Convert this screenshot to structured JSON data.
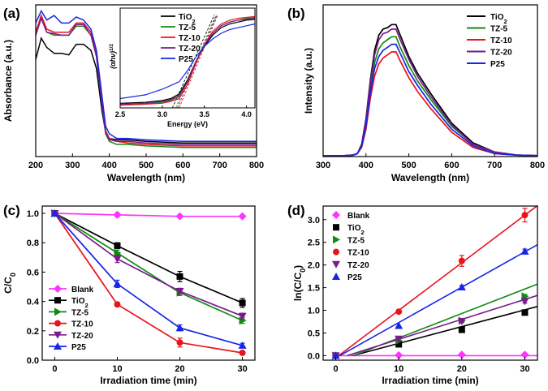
{
  "colors": {
    "TiO2": "#000000",
    "TZ-5": "#138a13",
    "TZ-10": "#e8141c",
    "TZ-20": "#7a1a8c",
    "P25": "#1626e6",
    "Blank": "#ff33ff"
  },
  "chart_data": [
    {
      "panel": "(a)",
      "type": "line",
      "xlabel": "Wavelength (nm)",
      "ylabel": "Absorbance (a.u.)",
      "xlim": [
        200,
        800
      ],
      "xticks": [
        200,
        300,
        400,
        500,
        600,
        700,
        800
      ],
      "yticks": [],
      "legend": "inset top-left",
      "series": [
        {
          "name": "TiO2",
          "x": [
            200,
            215,
            230,
            250,
            270,
            290,
            310,
            330,
            350,
            365,
            380,
            390,
            400,
            420,
            450,
            500,
            600,
            700,
            800
          ],
          "y": [
            0.64,
            0.78,
            0.72,
            0.68,
            0.68,
            0.67,
            0.74,
            0.74,
            0.7,
            0.58,
            0.3,
            0.16,
            0.12,
            0.11,
            0.11,
            0.1,
            0.09,
            0.09,
            0.09
          ]
        },
        {
          "name": "TZ-5",
          "x": [
            200,
            215,
            230,
            250,
            270,
            290,
            310,
            330,
            350,
            365,
            380,
            390,
            400,
            420,
            450,
            500,
            600,
            700,
            800
          ],
          "y": [
            0.8,
            0.92,
            0.82,
            0.8,
            0.8,
            0.8,
            0.86,
            0.86,
            0.8,
            0.66,
            0.34,
            0.15,
            0.1,
            0.08,
            0.08,
            0.07,
            0.06,
            0.06,
            0.06
          ]
        },
        {
          "name": "TZ-10",
          "x": [
            200,
            215,
            230,
            250,
            270,
            290,
            310,
            330,
            350,
            365,
            380,
            390,
            400,
            420,
            450,
            500,
            600,
            700,
            800
          ],
          "y": [
            0.82,
            0.93,
            0.84,
            0.82,
            0.82,
            0.82,
            0.88,
            0.88,
            0.82,
            0.68,
            0.36,
            0.17,
            0.12,
            0.1,
            0.09,
            0.08,
            0.07,
            0.07,
            0.07
          ]
        },
        {
          "name": "TZ-20",
          "x": [
            200,
            215,
            230,
            250,
            270,
            290,
            310,
            330,
            350,
            365,
            380,
            390,
            400,
            420,
            450,
            500,
            600,
            700,
            800
          ],
          "y": [
            0.8,
            0.91,
            0.82,
            0.81,
            0.8,
            0.8,
            0.87,
            0.87,
            0.8,
            0.66,
            0.34,
            0.16,
            0.11,
            0.1,
            0.1,
            0.09,
            0.08,
            0.08,
            0.08
          ]
        },
        {
          "name": "P25",
          "x": [
            200,
            215,
            230,
            250,
            270,
            290,
            310,
            330,
            350,
            365,
            380,
            390,
            400,
            420,
            450,
            500,
            600,
            700,
            800
          ],
          "y": [
            0.88,
            0.96,
            0.9,
            0.93,
            0.88,
            0.88,
            0.92,
            0.9,
            0.84,
            0.7,
            0.4,
            0.2,
            0.15,
            0.12,
            0.12,
            0.11,
            0.1,
            0.1,
            0.1
          ]
        }
      ],
      "inset": {
        "xlabel": "Energy (eV)",
        "ylabel": "(αhν)1/2",
        "xlim": [
          2.5,
          4.1
        ],
        "xticks": [
          "2.5",
          "3.0",
          "3.5",
          "4.0"
        ],
        "series": [
          {
            "name": "TiO2",
            "x": [
              2.5,
              2.8,
              3.0,
              3.1,
              3.2,
              3.3,
              3.4,
              3.5,
              3.6,
              3.7,
              3.8,
              3.9,
              4.0,
              4.1
            ],
            "y": [
              0.05,
              0.06,
              0.08,
              0.1,
              0.15,
              0.3,
              0.5,
              0.66,
              0.78,
              0.86,
              0.9,
              0.92,
              0.94,
              0.95
            ]
          },
          {
            "name": "TZ-5",
            "x": [
              2.5,
              2.8,
              3.0,
              3.1,
              3.2,
              3.3,
              3.4,
              3.5,
              3.6,
              3.7,
              3.8,
              3.9,
              4.0,
              4.1
            ],
            "y": [
              0.03,
              0.04,
              0.06,
              0.08,
              0.12,
              0.28,
              0.5,
              0.68,
              0.8,
              0.88,
              0.92,
              0.94,
              0.96,
              0.97
            ]
          },
          {
            "name": "TZ-10",
            "x": [
              2.5,
              2.8,
              3.0,
              3.1,
              3.2,
              3.3,
              3.4,
              3.5,
              3.6,
              3.7,
              3.8,
              3.9,
              4.0,
              4.1
            ],
            "y": [
              0.03,
              0.04,
              0.05,
              0.07,
              0.1,
              0.25,
              0.48,
              0.68,
              0.82,
              0.9,
              0.94,
              0.96,
              0.97,
              0.98
            ]
          },
          {
            "name": "TZ-20",
            "x": [
              2.5,
              2.8,
              3.0,
              3.1,
              3.2,
              3.3,
              3.4,
              3.5,
              3.6,
              3.7,
              3.8,
              3.9,
              4.0,
              4.1
            ],
            "y": [
              0.04,
              0.05,
              0.07,
              0.09,
              0.13,
              0.28,
              0.5,
              0.67,
              0.8,
              0.88,
              0.92,
              0.94,
              0.95,
              0.96
            ]
          },
          {
            "name": "P25",
            "x": [
              2.5,
              2.8,
              3.0,
              3.1,
              3.2,
              3.3,
              3.4,
              3.5,
              3.6,
              3.7,
              3.8,
              3.9,
              4.0,
              4.1
            ],
            "y": [
              0.1,
              0.14,
              0.2,
              0.24,
              0.28,
              0.4,
              0.55,
              0.66,
              0.74,
              0.8,
              0.84,
              0.86,
              0.88,
              0.9
            ]
          }
        ],
        "tangents": [
          {
            "name": "TiO2",
            "x": [
              3.12,
              3.62
            ],
            "y": [
              0.0,
              1.0
            ]
          },
          {
            "name": "TZ-5",
            "x": [
              3.16,
              3.64
            ],
            "y": [
              0.0,
              1.0
            ]
          },
          {
            "name": "TZ-10",
            "x": [
              3.2,
              3.66
            ],
            "y": [
              0.0,
              1.0
            ]
          },
          {
            "name": "TZ-20",
            "x": [
              3.18,
              3.65
            ],
            "y": [
              0.0,
              1.0
            ]
          }
        ]
      }
    },
    {
      "panel": "(b)",
      "type": "line",
      "xlabel": "Wavelength (nm)",
      "ylabel": "Intensity (a.u.)",
      "xlim": [
        300,
        800
      ],
      "xticks": [
        300,
        400,
        500,
        600,
        700,
        800
      ],
      "yticks": [],
      "legend": "top-right",
      "series": [
        {
          "name": "TiO2",
          "x": [
            300,
            350,
            370,
            380,
            390,
            400,
            410,
            420,
            430,
            440,
            450,
            460,
            470,
            480,
            500,
            520,
            550,
            600,
            650,
            700,
            750,
            800
          ],
          "y": [
            0.005,
            0.006,
            0.01,
            0.02,
            0.08,
            0.25,
            0.5,
            0.7,
            0.8,
            0.84,
            0.85,
            0.87,
            0.87,
            0.8,
            0.66,
            0.55,
            0.42,
            0.22,
            0.09,
            0.03,
            0.01,
            0.006
          ]
        },
        {
          "name": "TZ-5",
          "x": [
            300,
            350,
            370,
            380,
            390,
            400,
            410,
            420,
            430,
            440,
            450,
            460,
            470,
            480,
            500,
            520,
            550,
            600,
            650,
            700,
            750,
            800
          ],
          "y": [
            0.005,
            0.006,
            0.01,
            0.02,
            0.07,
            0.22,
            0.45,
            0.62,
            0.71,
            0.75,
            0.77,
            0.79,
            0.79,
            0.72,
            0.6,
            0.5,
            0.38,
            0.2,
            0.08,
            0.03,
            0.01,
            0.006
          ]
        },
        {
          "name": "TZ-10",
          "x": [
            300,
            350,
            370,
            380,
            390,
            400,
            410,
            420,
            430,
            440,
            450,
            460,
            470,
            480,
            500,
            520,
            550,
            600,
            650,
            700,
            750,
            800
          ],
          "y": [
            0.005,
            0.006,
            0.01,
            0.02,
            0.06,
            0.18,
            0.38,
            0.53,
            0.61,
            0.65,
            0.67,
            0.69,
            0.69,
            0.63,
            0.52,
            0.43,
            0.32,
            0.16,
            0.06,
            0.02,
            0.01,
            0.006
          ]
        },
        {
          "name": "TZ-20",
          "x": [
            300,
            350,
            370,
            380,
            390,
            400,
            410,
            420,
            430,
            440,
            450,
            460,
            470,
            480,
            500,
            520,
            550,
            600,
            650,
            700,
            750,
            800
          ],
          "y": [
            0.005,
            0.006,
            0.01,
            0.02,
            0.07,
            0.24,
            0.48,
            0.67,
            0.77,
            0.81,
            0.82,
            0.84,
            0.84,
            0.77,
            0.64,
            0.53,
            0.4,
            0.21,
            0.08,
            0.03,
            0.01,
            0.006
          ]
        },
        {
          "name": "P25",
          "x": [
            300,
            350,
            370,
            380,
            390,
            400,
            410,
            420,
            430,
            440,
            450,
            460,
            470,
            480,
            500,
            520,
            550,
            600,
            650,
            700,
            750,
            800
          ],
          "y": [
            0.005,
            0.006,
            0.01,
            0.02,
            0.07,
            0.2,
            0.42,
            0.58,
            0.66,
            0.7,
            0.72,
            0.74,
            0.74,
            0.68,
            0.56,
            0.47,
            0.35,
            0.18,
            0.07,
            0.02,
            0.01,
            0.006
          ]
        }
      ]
    },
    {
      "panel": "(c)",
      "type": "line",
      "xlabel": "Irradiation time (min)",
      "ylabel": "C/C0",
      "xlim": [
        -2,
        32
      ],
      "ylim": [
        0.0,
        1.05
      ],
      "xticks": [
        0,
        10,
        20,
        30
      ],
      "yticks": [
        "0.0",
        "0.2",
        "0.4",
        "0.6",
        "0.8",
        "1.0"
      ],
      "legend": "bottom-left",
      "series": [
        {
          "name": "Blank",
          "marker": "diamond",
          "x": [
            0,
            10,
            20,
            30
          ],
          "y": [
            1.0,
            0.99,
            0.98,
            0.98
          ],
          "err": [
            0,
            0.015,
            0,
            0
          ]
        },
        {
          "name": "TiO2",
          "marker": "square",
          "x": [
            0,
            10,
            20,
            30
          ],
          "y": [
            1.0,
            0.78,
            0.57,
            0.39
          ],
          "err": [
            0,
            0.02,
            0.035,
            0.03
          ]
        },
        {
          "name": "TZ-5",
          "marker": "triangle-right",
          "x": [
            0,
            10,
            20,
            30
          ],
          "y": [
            1.0,
            0.73,
            0.46,
            0.27
          ],
          "err": [
            0,
            0.02,
            0.02,
            0.02
          ]
        },
        {
          "name": "TZ-10",
          "marker": "circle",
          "x": [
            0,
            10,
            20,
            30
          ],
          "y": [
            1.0,
            0.38,
            0.12,
            0.05
          ],
          "err": [
            0,
            0.01,
            0.03,
            0.01
          ]
        },
        {
          "name": "TZ-20",
          "marker": "triangle-down",
          "x": [
            0,
            10,
            20,
            30
          ],
          "y": [
            1.0,
            0.69,
            0.47,
            0.3
          ],
          "err": [
            0,
            0.025,
            0.02,
            0.02
          ]
        },
        {
          "name": "P25",
          "marker": "triangle-up",
          "x": [
            0,
            10,
            20,
            30
          ],
          "y": [
            1.0,
            0.52,
            0.22,
            0.1
          ],
          "err": [
            0,
            0.025,
            0.02,
            0.015
          ]
        }
      ]
    },
    {
      "panel": "(d)",
      "type": "scatter",
      "xlabel": "Irradiation time (min)",
      "ylabel": "ln(C/C0)",
      "xlim": [
        -2,
        32
      ],
      "ylim": [
        -0.1,
        3.3
      ],
      "xticks": [
        0,
        10,
        20,
        30
      ],
      "yticks": [
        "0.0",
        "0.5",
        "1.0",
        "1.5",
        "2.0",
        "2.5",
        "3.0"
      ],
      "legend": "top-left",
      "series": [
        {
          "name": "Blank",
          "marker": "diamond",
          "x": [
            0,
            10,
            20,
            30
          ],
          "y": [
            0.0,
            0.01,
            0.02,
            0.02
          ],
          "err": [
            0,
            0,
            0,
            0
          ],
          "fit": [
            0.0,
            0.0
          ]
        },
        {
          "name": "TiO2",
          "marker": "square",
          "x": [
            0,
            10,
            20,
            30
          ],
          "y": [
            0.0,
            0.25,
            0.57,
            0.95
          ],
          "err": [
            0,
            0,
            0.03,
            0.03
          ],
          "fit": [
            0.037,
            -0.1
          ]
        },
        {
          "name": "TZ-5",
          "marker": "triangle-right",
          "x": [
            0,
            10,
            20,
            30
          ],
          "y": [
            0.0,
            0.33,
            0.77,
            1.31
          ],
          "err": [
            0,
            0,
            0.03,
            0.04
          ],
          "fit": [
            0.054,
            -0.15
          ]
        },
        {
          "name": "TZ-10",
          "marker": "circle",
          "x": [
            0,
            10,
            20,
            30
          ],
          "y": [
            0.0,
            0.97,
            2.09,
            3.1
          ],
          "err": [
            0,
            0.02,
            0.12,
            0.15
          ],
          "fit": [
            0.105,
            -0.05
          ]
        },
        {
          "name": "TZ-20",
          "marker": "triangle-down",
          "x": [
            0,
            10,
            20,
            30
          ],
          "y": [
            0.0,
            0.37,
            0.76,
            1.2
          ],
          "err": [
            0,
            0,
            0.03,
            0.04
          ],
          "fit": [
            0.044,
            -0.08
          ]
        },
        {
          "name": "P25",
          "marker": "triangle-up",
          "x": [
            0,
            10,
            20,
            30
          ],
          "y": [
            0.0,
            0.66,
            1.51,
            2.3
          ],
          "err": [
            0,
            0,
            0.04,
            0.05
          ],
          "fit": [
            0.078,
            -0.05
          ]
        }
      ]
    }
  ]
}
